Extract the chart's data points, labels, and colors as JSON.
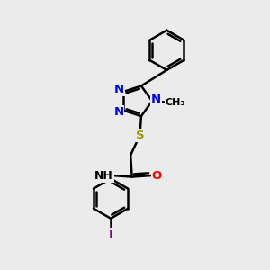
{
  "background_color": "#ebebeb",
  "bond_color": "#000000",
  "bond_width": 1.8,
  "atom_colors": {
    "N": "#0000ff",
    "O": "#ff0000",
    "S": "#999900",
    "I": "#8b008b",
    "C": "#000000",
    "H": "#404040"
  },
  "font_size": 9.5,
  "figsize": [
    3.0,
    3.0
  ],
  "dpi": 100,
  "xlim": [
    0,
    10
  ],
  "ylim": [
    0,
    10
  ]
}
